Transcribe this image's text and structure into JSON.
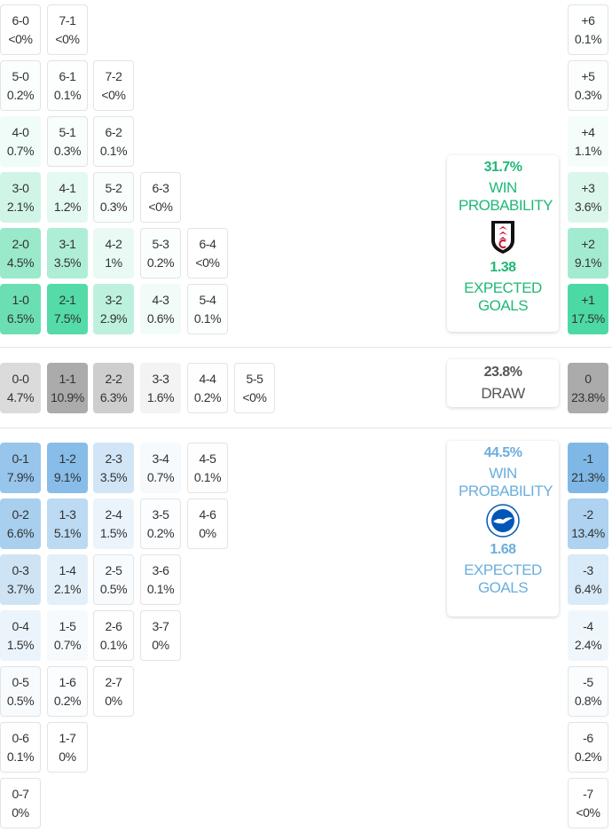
{
  "colors": {
    "home": "#3fd69c",
    "draw": "#a6a6a6",
    "away": "#74b2e4",
    "home_text": "#1fb976",
    "away_text": "#6aaedd",
    "draw_text": "#555555"
  },
  "home_grid": [
    [
      [
        "6-0",
        "<0%"
      ],
      [
        "7-1",
        "<0%"
      ]
    ],
    [
      [
        "5-0",
        "0.2%"
      ],
      [
        "6-1",
        "0.1%"
      ],
      [
        "7-2",
        "<0%"
      ]
    ],
    [
      [
        "4-0",
        "0.7%"
      ],
      [
        "5-1",
        "0.3%"
      ],
      [
        "6-2",
        "0.1%"
      ]
    ],
    [
      [
        "3-0",
        "2.1%"
      ],
      [
        "4-1",
        "1.2%"
      ],
      [
        "5-2",
        "0.3%"
      ],
      [
        "6-3",
        "<0%"
      ]
    ],
    [
      [
        "2-0",
        "4.5%"
      ],
      [
        "3-1",
        "3.5%"
      ],
      [
        "4-2",
        "1%"
      ],
      [
        "5-3",
        "0.2%"
      ],
      [
        "6-4",
        "<0%"
      ]
    ],
    [
      [
        "1-0",
        "6.5%"
      ],
      [
        "2-1",
        "7.5%"
      ],
      [
        "3-2",
        "2.9%"
      ],
      [
        "4-3",
        "0.6%"
      ],
      [
        "5-4",
        "0.1%"
      ]
    ]
  ],
  "draw_grid": [
    [
      [
        "0-0",
        "4.7%"
      ],
      [
        "1-1",
        "10.9%"
      ],
      [
        "2-2",
        "6.3%"
      ],
      [
        "3-3",
        "1.6%"
      ],
      [
        "4-4",
        "0.2%"
      ],
      [
        "5-5",
        "<0%"
      ]
    ]
  ],
  "away_grid": [
    [
      [
        "0-1",
        "7.9%"
      ],
      [
        "1-2",
        "9.1%"
      ],
      [
        "2-3",
        "3.5%"
      ],
      [
        "3-4",
        "0.7%"
      ],
      [
        "4-5",
        "0.1%"
      ]
    ],
    [
      [
        "0-2",
        "6.6%"
      ],
      [
        "1-3",
        "5.1%"
      ],
      [
        "2-4",
        "1.5%"
      ],
      [
        "3-5",
        "0.2%"
      ],
      [
        "4-6",
        "0%"
      ]
    ],
    [
      [
        "0-3",
        "3.7%"
      ],
      [
        "1-4",
        "2.1%"
      ],
      [
        "2-5",
        "0.5%"
      ],
      [
        "3-6",
        "0.1%"
      ]
    ],
    [
      [
        "0-4",
        "1.5%"
      ],
      [
        "1-5",
        "0.7%"
      ],
      [
        "2-6",
        "0.1%"
      ],
      [
        "3-7",
        "0%"
      ]
    ],
    [
      [
        "0-5",
        "0.5%"
      ],
      [
        "1-6",
        "0.2%"
      ],
      [
        "2-7",
        "0%"
      ]
    ],
    [
      [
        "0-6",
        "0.1%"
      ],
      [
        "1-7",
        "0%"
      ]
    ],
    [
      [
        "0-7",
        "0%"
      ]
    ]
  ],
  "home_margins": [
    [
      "+6",
      "0.1%"
    ],
    [
      "+5",
      "0.3%"
    ],
    [
      "+4",
      "1.1%"
    ],
    [
      "+3",
      "3.6%"
    ],
    [
      "+2",
      "9.1%"
    ],
    [
      "+1",
      "17.5%"
    ]
  ],
  "draw_margin": [
    [
      "0",
      "23.8%"
    ]
  ],
  "away_margins": [
    [
      "-1",
      "21.3%"
    ],
    [
      "-2",
      "13.4%"
    ],
    [
      "-3",
      "6.4%"
    ],
    [
      "-4",
      "2.4%"
    ],
    [
      "-5",
      "0.8%"
    ],
    [
      "-6",
      "0.2%"
    ],
    [
      "-7",
      "<0%"
    ]
  ],
  "home_card": {
    "win_pct": "31.7%",
    "win_label": "WIN PROBABILITY",
    "xg": "1.38",
    "xg_label": "EXPECTED GOALS",
    "crest_icon": "fulham-crest"
  },
  "draw_card": {
    "pct": "23.8%",
    "label": "DRAW"
  },
  "away_card": {
    "win_pct": "44.5%",
    "win_label": "WIN PROBABILITY",
    "xg": "1.68",
    "xg_label": "EXPECTED GOALS",
    "crest_icon": "brighton-crest"
  }
}
